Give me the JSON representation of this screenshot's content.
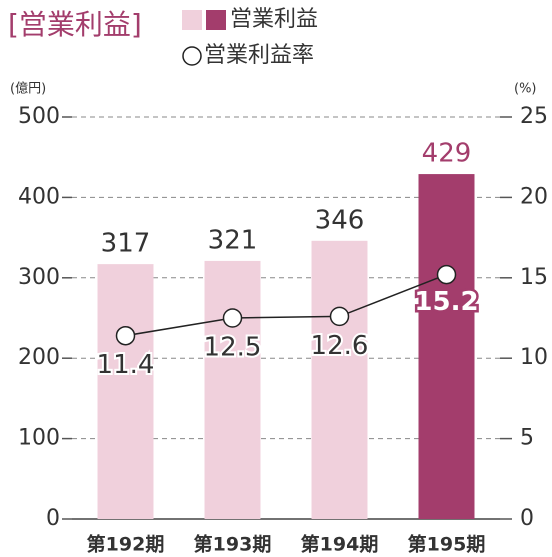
{
  "chart_data": {
    "type": "bar",
    "title": "[営業利益]",
    "categories": [
      "第192期",
      "第193期",
      "第194期",
      "第195期"
    ],
    "series": [
      {
        "name": "営業利益",
        "type": "bar",
        "colors": [
          "#f0d0dc",
          "#f0d0dc",
          "#f0d0dc",
          "#a33d6c"
        ],
        "values": [
          317,
          321,
          346,
          429
        ]
      },
      {
        "name": "営業利益率",
        "type": "line",
        "axis": "y2",
        "color": "#222222",
        "values": [
          11.4,
          12.5,
          12.6,
          15.2
        ]
      }
    ],
    "ylabel": "(億円)",
    "y2label": "(%)",
    "ylim": [
      0,
      500
    ],
    "yticks": [
      0,
      100,
      200,
      300,
      400,
      500
    ],
    "y2lim": [
      0,
      25
    ],
    "y2ticks": [
      0,
      5,
      10,
      15,
      20,
      25
    ],
    "grid": true
  }
}
